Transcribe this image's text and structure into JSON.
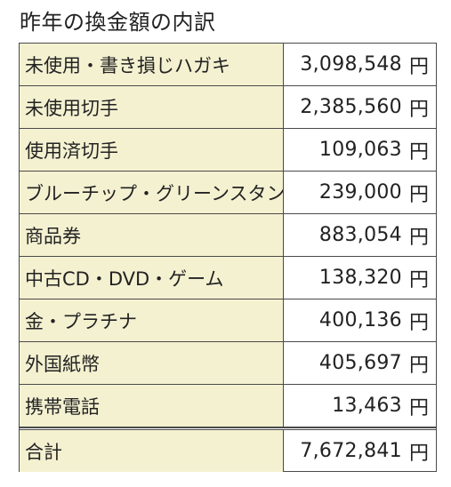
{
  "title": "昨年の換金額の内訳",
  "rows": [
    {
      "label": "未使用・書き損じハガキ",
      "amount": "3,098,548",
      "unit": "円"
    },
    {
      "label": "未使用切手",
      "amount": "2,385,560",
      "unit": "円"
    },
    {
      "label": "使用済切手",
      "amount": "109,063",
      "unit": "円"
    },
    {
      "label": "ブルーチップ・グリーンスタンプ",
      "amount": "239,000",
      "unit": "円"
    },
    {
      "label": "商品券",
      "amount": "883,054",
      "unit": "円"
    },
    {
      "label": "中古CD・DVD・ゲーム",
      "amount": "138,320",
      "unit": "円"
    },
    {
      "label": "金・プラチナ",
      "amount": "400,136",
      "unit": "円"
    },
    {
      "label": "外国紙幣",
      "amount": "405,697",
      "unit": "円"
    },
    {
      "label": "携帯電話",
      "amount": "13,463",
      "unit": "円"
    }
  ],
  "total": {
    "label": "合計",
    "amount": "7,672,841",
    "unit": "円"
  },
  "colors": {
    "label_background": "#f4f1d1",
    "border": "#4a4a4a",
    "text": "#222222"
  }
}
